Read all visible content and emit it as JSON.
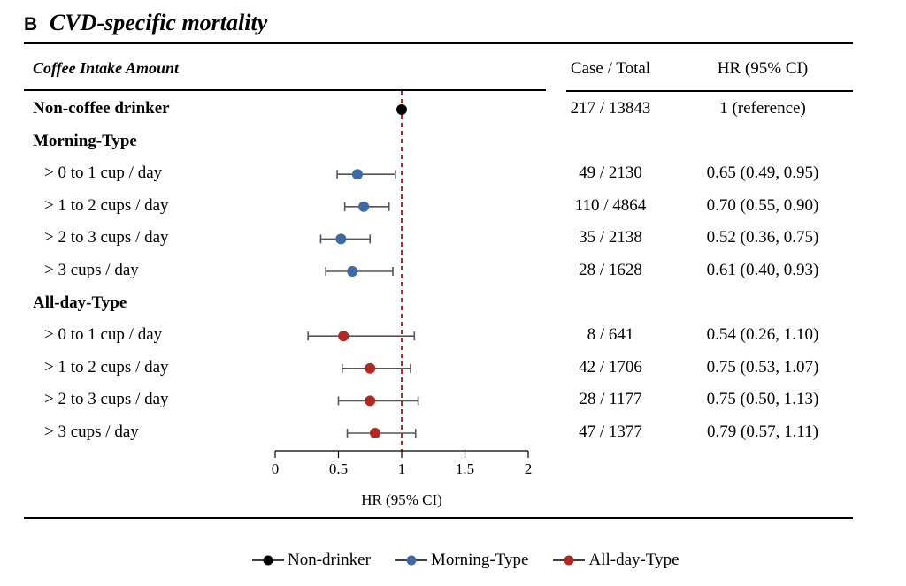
{
  "panel": {
    "letter": "B",
    "title": "CVD-specific mortality"
  },
  "headers": {
    "amount": "Coffee Intake Amount",
    "case_total": "Case / Total",
    "hr": "HR (95% CI)"
  },
  "rows": [
    {
      "label": "Non-coffee drinker",
      "group": true,
      "case_total": "217 / 13843",
      "hr_text": "1 (reference)"
    },
    {
      "label": "Morning-Type",
      "group": true,
      "case_total": "",
      "hr_text": ""
    },
    {
      "label": "> 0 to 1 cup / day",
      "group": false,
      "case_total": "49 / 2130",
      "hr_text": "0.65 (0.49, 0.95)"
    },
    {
      "label": "> 1 to 2 cups / day",
      "group": false,
      "case_total": "110 / 4864",
      "hr_text": "0.70 (0.55, 0.90)"
    },
    {
      "label": "> 2 to 3 cups / day",
      "group": false,
      "case_total": "35 / 2138",
      "hr_text": "0.52 (0.36, 0.75)"
    },
    {
      "label": "> 3 cups / day",
      "group": false,
      "case_total": "28 / 1628",
      "hr_text": "0.61 (0.40, 0.93)"
    },
    {
      "label": "All-day-Type",
      "group": true,
      "case_total": "",
      "hr_text": ""
    },
    {
      "label": "> 0 to 1 cup / day",
      "group": false,
      "case_total": "8 / 641",
      "hr_text": "0.54 (0.26, 1.10)"
    },
    {
      "label": "> 1 to 2 cups / day",
      "group": false,
      "case_total": "42 / 1706",
      "hr_text": "0.75 (0.53, 1.07)"
    },
    {
      "label": "> 2 to 3 cups / day",
      "group": false,
      "case_total": "28 / 1177",
      "hr_text": "0.75 (0.50, 1.13)"
    },
    {
      "label": "> 3 cups / day",
      "group": false,
      "case_total": "47 / 1377",
      "hr_text": "0.79 (0.57, 1.11)"
    }
  ],
  "chart_data": {
    "type": "scatter",
    "subtype": "forest",
    "xlabel": "HR (95% CI)",
    "xlim": [
      0,
      2
    ],
    "xticks": [
      "0",
      "0.5",
      "1",
      "1.5",
      "2"
    ],
    "reference_line": 1,
    "reference_line_style": "dashed",
    "reference_line_color": "#cc1f1f",
    "series": [
      {
        "name": "Non-drinker",
        "color": "#000000",
        "points": [
          {
            "row": 0,
            "hr": 1,
            "lo": null,
            "hi": null
          }
        ]
      },
      {
        "name": "Morning-Type",
        "color": "#3b6aa6",
        "points": [
          {
            "row": 2,
            "hr": 0.65,
            "lo": 0.49,
            "hi": 0.95
          },
          {
            "row": 3,
            "hr": 0.7,
            "lo": 0.55,
            "hi": 0.9
          },
          {
            "row": 4,
            "hr": 0.52,
            "lo": 0.36,
            "hi": 0.75
          },
          {
            "row": 5,
            "hr": 0.61,
            "lo": 0.4,
            "hi": 0.93
          }
        ]
      },
      {
        "name": "All-day-Type",
        "color": "#b02a24",
        "points": [
          {
            "row": 7,
            "hr": 0.54,
            "lo": 0.26,
            "hi": 1.1
          },
          {
            "row": 8,
            "hr": 0.75,
            "lo": 0.53,
            "hi": 1.07
          },
          {
            "row": 9,
            "hr": 0.75,
            "lo": 0.5,
            "hi": 1.13
          },
          {
            "row": 10,
            "hr": 0.79,
            "lo": 0.57,
            "hi": 1.11
          }
        ]
      }
    ],
    "legend_position": "bottom"
  }
}
